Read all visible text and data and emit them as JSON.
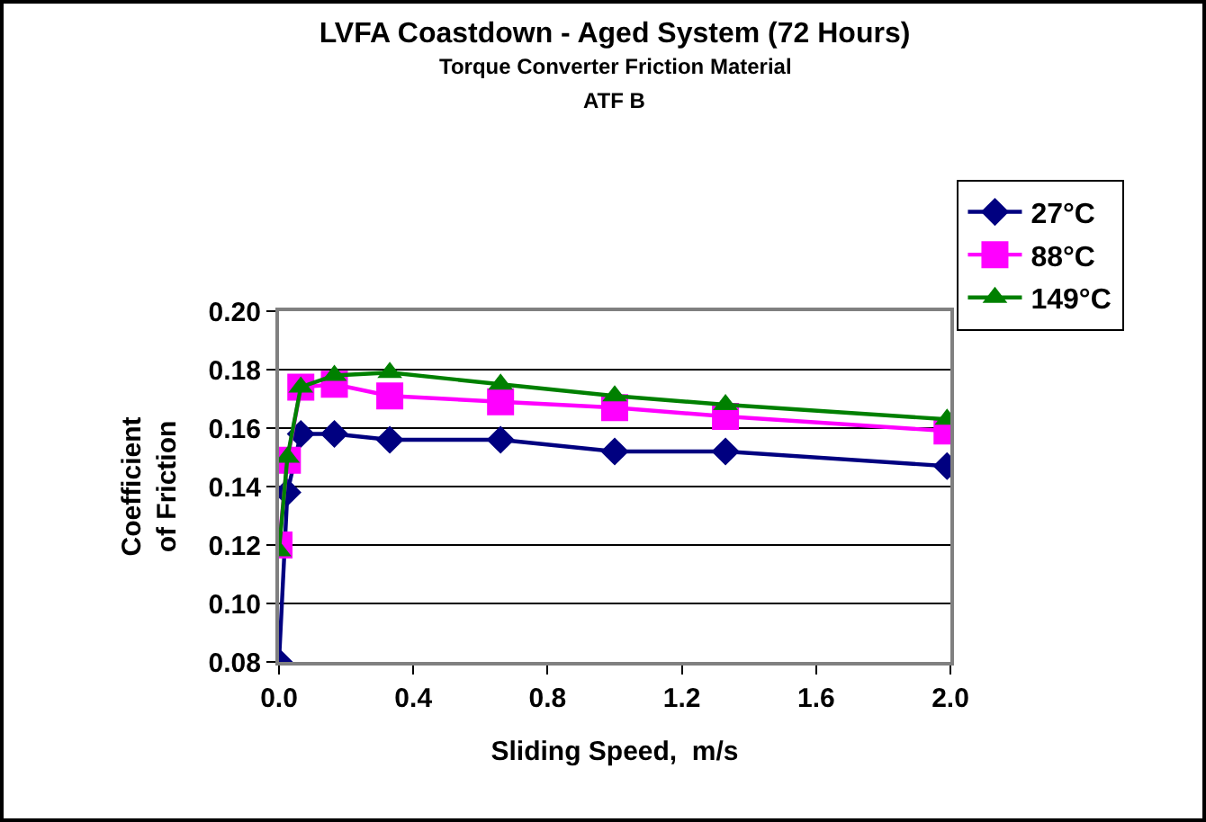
{
  "chart_data": {
    "type": "line",
    "title": "LVFA Coastdown - Aged System (72 Hours)",
    "subtitle": "Torque Converter Friction Material",
    "annotations": [
      "ATF B"
    ],
    "xlabel": "Sliding Speed,  m/s",
    "ylabel": "Coefficient of Friction",
    "x": [
      0,
      0.025,
      0.065,
      0.165,
      0.33,
      0.66,
      1.0,
      1.33,
      1.99
    ],
    "series": [
      {
        "name": "27°C",
        "color": "#000080",
        "marker": "diamond",
        "values": [
          0.08,
          0.138,
          0.158,
          0.158,
          0.156,
          0.156,
          0.152,
          0.152,
          0.147
        ]
      },
      {
        "name": "88°C",
        "color": "#ff00ff",
        "marker": "square",
        "values": [
          0.12,
          0.149,
          0.174,
          0.175,
          0.171,
          0.169,
          0.167,
          0.164,
          0.159
        ]
      },
      {
        "name": "149°C",
        "color": "#008000",
        "marker": "triangle",
        "values": [
          0.118,
          0.15,
          0.174,
          0.178,
          0.179,
          0.175,
          0.171,
          0.168,
          0.163
        ]
      }
    ],
    "xlim": [
      0,
      2.0
    ],
    "xticks": [
      {
        "value": 0,
        "label": "0.0"
      },
      0.4,
      0.8,
      1.2,
      1.6,
      {
        "value": 2,
        "label": "2.0"
      }
    ],
    "ylim": [
      0.08,
      0.2
    ],
    "yticks": [
      {
        "value": 0.08,
        "label": "0.08"
      },
      {
        "value": 0.1,
        "label": "0.10"
      },
      {
        "value": 0.12,
        "label": "0.12"
      },
      {
        "value": 0.14,
        "label": "0.14"
      },
      {
        "value": 0.16,
        "label": "0.16"
      },
      {
        "value": 0.18,
        "label": "0.18"
      },
      {
        "value": 0.2,
        "label": "0.20"
      }
    ],
    "grid": "y",
    "legend": "right",
    "line_style": "solid"
  }
}
